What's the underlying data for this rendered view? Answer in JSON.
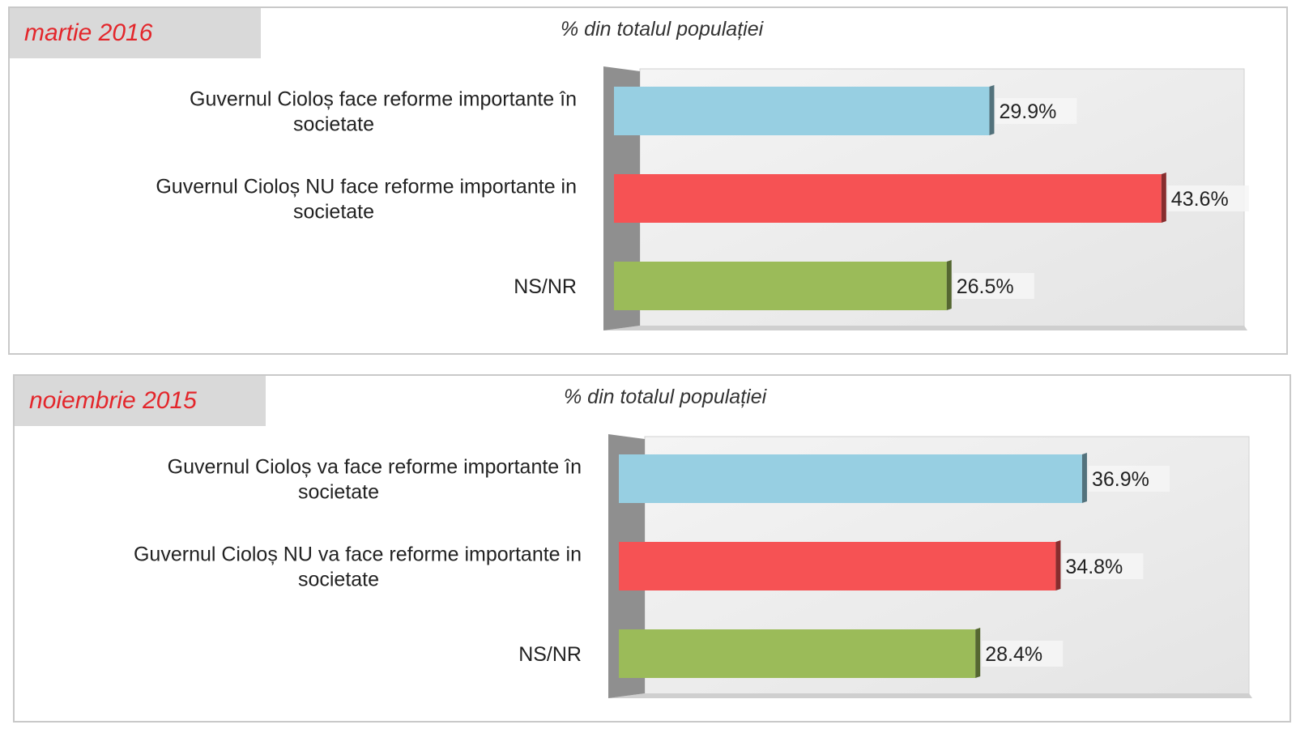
{
  "chart_data": [
    {
      "type": "bar",
      "orientation": "horizontal",
      "title": "martie 2016",
      "subtitle": "% din totalul populației",
      "categories": [
        [
          "Guvernul Cioloș  face reforme importante în",
          "societate"
        ],
        [
          "Guvernul Cioloș NU face reforme importante in",
          "societate"
        ],
        [
          "NS/NR"
        ]
      ],
      "values": [
        29.9,
        43.6,
        26.5
      ],
      "value_labels": [
        "29.9%",
        "43.6%",
        "26.5%"
      ],
      "colors": [
        "#97cfe2",
        "#f65254",
        "#9bbb59"
      ],
      "xlim": [
        0,
        50
      ],
      "grid": false
    },
    {
      "type": "bar",
      "orientation": "horizontal",
      "title": "noiembrie 2015",
      "subtitle": "% din totalul populației",
      "categories": [
        [
          "Guvernul Cioloș va face reforme importante în",
          "societate"
        ],
        [
          "Guvernul Cioloș NU va face reforme importante in",
          "societate"
        ],
        [
          "NS/NR"
        ]
      ],
      "values": [
        36.9,
        34.8,
        28.4
      ],
      "value_labels": [
        "36.9%",
        "34.8%",
        "28.4%"
      ],
      "colors": [
        "#97cfe2",
        "#f65254",
        "#9bbb59"
      ],
      "xlim": [
        0,
        50
      ],
      "grid": false
    }
  ]
}
